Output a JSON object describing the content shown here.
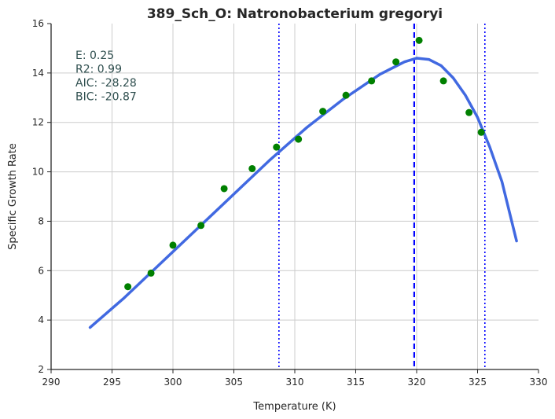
{
  "chart_data": {
    "type": "scatter",
    "title": "389_Sch_O: Natronobacterium gregoryi",
    "xlabel": "Temperature (K)",
    "ylabel": "Specific Growth Rate",
    "xlim": [
      290,
      330
    ],
    "ylim": [
      2,
      16
    ],
    "xticks": [
      "290",
      "295",
      "300",
      "305",
      "310",
      "315",
      "320",
      "325",
      "330"
    ],
    "yticks": [
      "2",
      "4",
      "6",
      "8",
      "10",
      "12",
      "14",
      "16"
    ],
    "grid": true,
    "annotations": [
      "E:  0.25",
      "R2:  0.99",
      "AIC: -28.28",
      "BIC: -20.87"
    ],
    "series": [
      {
        "kind": "points",
        "color": "#008000",
        "points": [
          [
            296.3,
            5.35
          ],
          [
            298.2,
            5.9
          ],
          [
            300.0,
            7.03
          ],
          [
            302.3,
            7.83
          ],
          [
            304.2,
            9.32
          ],
          [
            306.5,
            10.13
          ],
          [
            308.5,
            11.0
          ],
          [
            310.3,
            11.32
          ],
          [
            312.3,
            12.45
          ],
          [
            314.2,
            13.1
          ],
          [
            316.3,
            13.68
          ],
          [
            318.3,
            14.45
          ],
          [
            320.2,
            15.32
          ],
          [
            322.2,
            13.68
          ],
          [
            324.3,
            12.4
          ],
          [
            325.3,
            11.6
          ]
        ]
      },
      {
        "kind": "fitted-curve",
        "color": "#4169e1",
        "points": [
          [
            293.2,
            3.7
          ],
          [
            296.0,
            4.9
          ],
          [
            299.0,
            6.3
          ],
          [
            302.0,
            7.7
          ],
          [
            305.0,
            9.1
          ],
          [
            308.0,
            10.5
          ],
          [
            311.0,
            11.8
          ],
          [
            314.0,
            12.95
          ],
          [
            317.0,
            13.95
          ],
          [
            319.0,
            14.45
          ],
          [
            320.0,
            14.6
          ],
          [
            321.0,
            14.55
          ],
          [
            322.0,
            14.3
          ],
          [
            323.0,
            13.8
          ],
          [
            324.0,
            13.1
          ],
          [
            325.0,
            12.2
          ],
          [
            326.0,
            11.0
          ],
          [
            327.0,
            9.6
          ],
          [
            328.2,
            7.2
          ]
        ]
      }
    ],
    "vlines": [
      {
        "x": 308.7,
        "style": "dotted",
        "color": "#0000ff"
      },
      {
        "x": 319.8,
        "style": "dashed",
        "color": "#0000ff"
      },
      {
        "x": 325.6,
        "style": "dotted",
        "color": "#0000ff"
      }
    ]
  }
}
